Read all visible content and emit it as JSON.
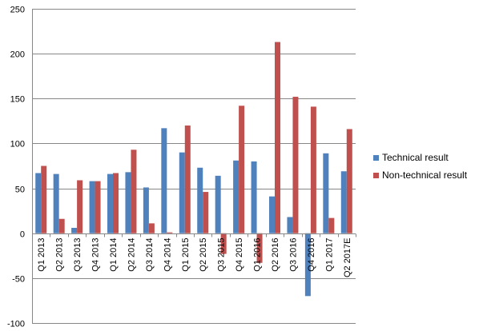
{
  "chart_data": {
    "type": "bar",
    "title": "",
    "xlabel": "",
    "ylabel": "",
    "ylim": [
      -100,
      250
    ],
    "yticks": [
      -100,
      -50,
      0,
      50,
      100,
      150,
      200,
      250
    ],
    "grid": true,
    "legend_position": "right",
    "categories": [
      "Q1 2013",
      "Q2 2013",
      "Q3 2013",
      "Q4 2013",
      "Q1 2014",
      "Q2 2014",
      "Q3 2014",
      "Q4 2014",
      "Q1 2015",
      "Q2 2015",
      "Q3 2015",
      "Q4 2015",
      "Q1 2016",
      "Q2 2016",
      "Q3 2016",
      "Q4 2016",
      "Q1 2017",
      "Q2 2017E"
    ],
    "series": [
      {
        "name": "Technical result",
        "color": "#4f81bd",
        "values": [
          67,
          66,
          6,
          58,
          66,
          68,
          51,
          117,
          90,
          73,
          64,
          81,
          80,
          41,
          18,
          -70,
          89,
          69
        ]
      },
      {
        "name": "Non-technical result",
        "color": "#c0504d",
        "values": [
          75,
          16,
          59,
          58,
          67,
          93,
          11,
          1,
          120,
          46,
          -23,
          142,
          -33,
          213,
          152,
          141,
          17,
          116
        ]
      }
    ]
  }
}
